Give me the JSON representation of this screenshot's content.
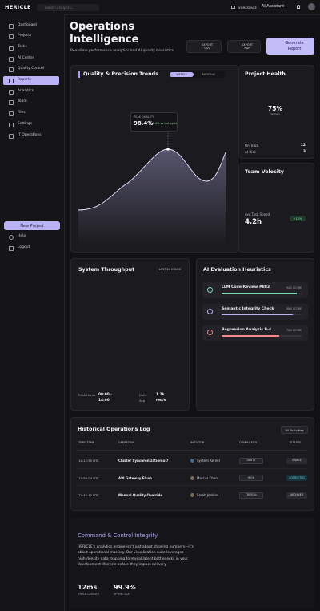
{
  "topbar": {
    "logo": "HERICLE",
    "search": "Search analytics...",
    "workspace": "WORKSPACE",
    "assistant": "AI Assistant"
  },
  "sidebar": {
    "items": [
      "Dashboard",
      "Projects",
      "Tasks",
      "AI Center",
      "Quality Control",
      "Reports",
      "Analytics",
      "Team",
      "Files",
      "Settings",
      "IT Operations"
    ],
    "new_project": "New Project",
    "help": "Help",
    "logout": "Logout"
  },
  "header": {
    "title": "Operations Intelligence",
    "subtitle": "Real-time performance analytics and AI quality heuristics.",
    "buttons": [
      "EXPORT CSV",
      "EXPORT PDF",
      "Generate Report"
    ]
  },
  "quality_trends": {
    "title": "Quality & Precision Trends",
    "toggle": [
      "WEEKLY",
      "MONTHLY"
    ],
    "tooltip": {
      "label": "PEAK QUALITY",
      "value": "98.4%",
      "delta": "+2.4% vs last cycle"
    }
  },
  "project_health": {
    "title": "Project Health",
    "percent": "75%",
    "status": "OPTIMAL",
    "rows": [
      [
        "On Track",
        "12"
      ],
      [
        "At Risk",
        "3"
      ]
    ]
  },
  "team_velocity": {
    "title": "Team Velocity",
    "label": "Avg Task Speed",
    "value": "4.2h",
    "delta": "+12%"
  },
  "throughput": {
    "title": "System Throughput",
    "range": "LAST 24 HOURS",
    "stats": [
      {
        "label": "Peak Hours",
        "value": "09:00 - 14:00"
      },
      {
        "label": "Daily Avg",
        "value": "1.2k req/s"
      }
    ]
  },
  "heuristics": {
    "title": "AI Evaluation Heuristics",
    "items": [
      {
        "name": "LLM Code Review #882",
        "score": "94.2 SCORE"
      },
      {
        "name": "Semantic Integrity Check",
        "score": "88.5 SCORE"
      },
      {
        "name": "Regression Analysis B-4",
        "score": "72.1 SCORE"
      }
    ]
  },
  "log": {
    "title": "Historical Operations Log",
    "filter": "All Activities",
    "columns": [
      "TIMESTAMP",
      "OPERATION",
      "INITIATOR",
      "COMPLEXITY",
      "STATUS"
    ],
    "rows": [
      [
        "14:12:55 UTC",
        "Cluster Synchronization α-7",
        "System Kernel",
        "Low LV",
        "STABLE"
      ],
      [
        "13:58:04 UTC",
        "API Gateway Flush",
        "Marcus Chen",
        "HIGH",
        "COMPLETED"
      ],
      [
        "12:45:12 UTC",
        "Manual Quality Override",
        "Sarah Jenkins",
        "CRITICAL",
        "ARCHIVED"
      ]
    ]
  },
  "integrity": {
    "title": "Command & Control Integrity",
    "body": "HERICLE's analytics engine isn't just about showing numbers—it's about operational mastery. Our visualization suite leverages high-density data mapping to reveal latent bottlenecks in your development lifecycle before they impact delivery.",
    "stats": [
      {
        "value": "12ms",
        "label": "SYNCH LATENCY"
      },
      {
        "value": "99.9%",
        "label": "UPTIME SLA"
      }
    ]
  }
}
